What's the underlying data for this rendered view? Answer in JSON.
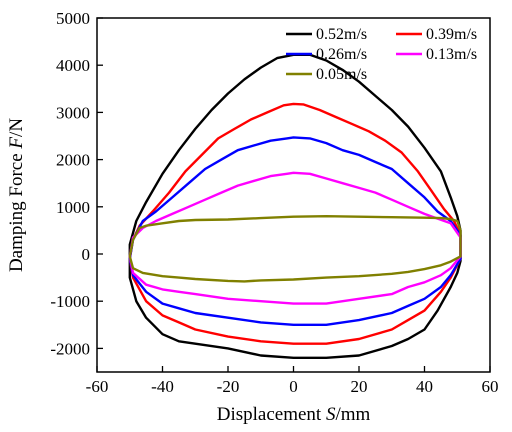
{
  "chart_data": {
    "type": "line",
    "xlabel_parts": [
      "Displacement ",
      "S",
      "/mm"
    ],
    "ylabel_parts": [
      "Damping Force ",
      "F",
      "/N"
    ],
    "xlim": [
      -60,
      60
    ],
    "ylim": [
      -2500,
      5000
    ],
    "xticks": [
      -60,
      -40,
      -20,
      0,
      20,
      40,
      60
    ],
    "yticks": [
      -2000,
      -1000,
      0,
      1000,
      2000,
      3000,
      4000,
      5000
    ],
    "grid": false,
    "legend_placement": "top-right",
    "series": [
      {
        "name": "0.52m/s",
        "color": "#000000",
        "upper": [
          [
            -50,
            -150
          ],
          [
            -50,
            200
          ],
          [
            -48,
            700
          ],
          [
            -45,
            1100
          ],
          [
            -40,
            1700
          ],
          [
            -35,
            2200
          ],
          [
            -30,
            2650
          ],
          [
            -25,
            3050
          ],
          [
            -20,
            3400
          ],
          [
            -15,
            3700
          ],
          [
            -10,
            3950
          ],
          [
            -5,
            4150
          ],
          [
            0,
            4220
          ],
          [
            5,
            4220
          ],
          [
            10,
            4100
          ],
          [
            15,
            3900
          ],
          [
            20,
            3650
          ],
          [
            25,
            3350
          ],
          [
            30,
            3050
          ],
          [
            35,
            2700
          ],
          [
            40,
            2250
          ],
          [
            45,
            1750
          ],
          [
            48,
            1200
          ],
          [
            50,
            800
          ],
          [
            51,
            500
          ],
          [
            51,
            0
          ],
          [
            51,
            -150
          ]
        ],
        "lower": [
          [
            -50,
            -150
          ],
          [
            -50,
            -500
          ],
          [
            -48,
            -1000
          ],
          [
            -45,
            -1350
          ],
          [
            -40,
            -1700
          ],
          [
            -35,
            -1850
          ],
          [
            -30,
            -1900
          ],
          [
            -20,
            -2000
          ],
          [
            -10,
            -2150
          ],
          [
            0,
            -2200
          ],
          [
            10,
            -2200
          ],
          [
            20,
            -2150
          ],
          [
            30,
            -1950
          ],
          [
            35,
            -1800
          ],
          [
            40,
            -1600
          ],
          [
            44,
            -1200
          ],
          [
            48,
            -700
          ],
          [
            50,
            -400
          ],
          [
            51,
            -150
          ]
        ]
      },
      {
        "name": "0.39m/s",
        "color": "#ff0000",
        "upper": [
          [
            -50,
            -100
          ],
          [
            -49,
            300
          ],
          [
            -47,
            600
          ],
          [
            -43,
            900
          ],
          [
            -38,
            1300
          ],
          [
            -33,
            1750
          ],
          [
            -28,
            2100
          ],
          [
            -23,
            2450
          ],
          [
            -18,
            2650
          ],
          [
            -13,
            2850
          ],
          [
            -8,
            3000
          ],
          [
            -3,
            3150
          ],
          [
            0,
            3180
          ],
          [
            3,
            3170
          ],
          [
            8,
            3050
          ],
          [
            13,
            2900
          ],
          [
            18,
            2750
          ],
          [
            23,
            2600
          ],
          [
            28,
            2400
          ],
          [
            33,
            2150
          ],
          [
            38,
            1750
          ],
          [
            42,
            1350
          ],
          [
            46,
            950
          ],
          [
            49,
            700
          ],
          [
            51,
            400
          ],
          [
            51,
            -100
          ]
        ],
        "lower": [
          [
            -50,
            -100
          ],
          [
            -49,
            -500
          ],
          [
            -45,
            -1000
          ],
          [
            -40,
            -1300
          ],
          [
            -35,
            -1450
          ],
          [
            -30,
            -1600
          ],
          [
            -20,
            -1750
          ],
          [
            -10,
            -1850
          ],
          [
            0,
            -1900
          ],
          [
            10,
            -1900
          ],
          [
            20,
            -1800
          ],
          [
            30,
            -1600
          ],
          [
            35,
            -1400
          ],
          [
            40,
            -1200
          ],
          [
            45,
            -800
          ],
          [
            48,
            -500
          ],
          [
            51,
            -100
          ]
        ]
      },
      {
        "name": "0.26m/s",
        "color": "#0000ff",
        "upper": [
          [
            -50,
            -100
          ],
          [
            -49,
            300
          ],
          [
            -46,
            700
          ],
          [
            -42,
            900
          ],
          [
            -37,
            1200
          ],
          [
            -32,
            1500
          ],
          [
            -27,
            1800
          ],
          [
            -22,
            2000
          ],
          [
            -17,
            2200
          ],
          [
            -12,
            2300
          ],
          [
            -7,
            2400
          ],
          [
            -2,
            2450
          ],
          [
            0,
            2470
          ],
          [
            5,
            2450
          ],
          [
            10,
            2350
          ],
          [
            15,
            2200
          ],
          [
            20,
            2100
          ],
          [
            25,
            1950
          ],
          [
            30,
            1800
          ],
          [
            35,
            1500
          ],
          [
            40,
            1200
          ],
          [
            44,
            900
          ],
          [
            48,
            700
          ],
          [
            51,
            400
          ],
          [
            51,
            -100
          ]
        ],
        "lower": [
          [
            -50,
            -100
          ],
          [
            -49,
            -450
          ],
          [
            -45,
            -800
          ],
          [
            -40,
            -1050
          ],
          [
            -35,
            -1150
          ],
          [
            -30,
            -1250
          ],
          [
            -20,
            -1350
          ],
          [
            -10,
            -1450
          ],
          [
            0,
            -1500
          ],
          [
            10,
            -1500
          ],
          [
            20,
            -1400
          ],
          [
            30,
            -1250
          ],
          [
            35,
            -1100
          ],
          [
            40,
            -950
          ],
          [
            45,
            -700
          ],
          [
            48,
            -450
          ],
          [
            51,
            -100
          ]
        ]
      },
      {
        "name": "0.13m/s",
        "color": "#ff00ff",
        "upper": [
          [
            -50,
            -50
          ],
          [
            -49,
            350
          ],
          [
            -46,
            550
          ],
          [
            -42,
            700
          ],
          [
            -37,
            850
          ],
          [
            -32,
            1000
          ],
          [
            -27,
            1150
          ],
          [
            -22,
            1300
          ],
          [
            -17,
            1450
          ],
          [
            -12,
            1550
          ],
          [
            -7,
            1650
          ],
          [
            -2,
            1700
          ],
          [
            0,
            1720
          ],
          [
            5,
            1700
          ],
          [
            10,
            1600
          ],
          [
            15,
            1500
          ],
          [
            20,
            1400
          ],
          [
            25,
            1300
          ],
          [
            30,
            1150
          ],
          [
            35,
            1000
          ],
          [
            40,
            850
          ],
          [
            44,
            750
          ],
          [
            48,
            650
          ],
          [
            51,
            350
          ],
          [
            51,
            -50
          ]
        ],
        "lower": [
          [
            -50,
            -50
          ],
          [
            -49,
            -400
          ],
          [
            -45,
            -650
          ],
          [
            -40,
            -750
          ],
          [
            -35,
            -800
          ],
          [
            -30,
            -850
          ],
          [
            -20,
            -950
          ],
          [
            -10,
            -1000
          ],
          [
            0,
            -1050
          ],
          [
            10,
            -1050
          ],
          [
            20,
            -950
          ],
          [
            30,
            -850
          ],
          [
            35,
            -700
          ],
          [
            40,
            -600
          ],
          [
            45,
            -450
          ],
          [
            48,
            -300
          ],
          [
            51,
            -50
          ]
        ]
      },
      {
        "name": "0.05m/s",
        "color": "#808000",
        "upper": [
          [
            -50,
            -50
          ],
          [
            -49,
            300
          ],
          [
            -47,
            550
          ],
          [
            -45,
            600
          ],
          [
            -40,
            650
          ],
          [
            -35,
            700
          ],
          [
            -30,
            720
          ],
          [
            -20,
            730
          ],
          [
            -10,
            760
          ],
          [
            0,
            790
          ],
          [
            10,
            800
          ],
          [
            20,
            790
          ],
          [
            30,
            780
          ],
          [
            40,
            770
          ],
          [
            45,
            760
          ],
          [
            48,
            740
          ],
          [
            50,
            700
          ],
          [
            51,
            500
          ],
          [
            51,
            -50
          ]
        ],
        "lower": [
          [
            -50,
            -50
          ],
          [
            -49,
            -300
          ],
          [
            -46,
            -400
          ],
          [
            -40,
            -470
          ],
          [
            -35,
            -500
          ],
          [
            -30,
            -530
          ],
          [
            -20,
            -570
          ],
          [
            -15,
            -580
          ],
          [
            -10,
            -560
          ],
          [
            0,
            -540
          ],
          [
            10,
            -500
          ],
          [
            20,
            -470
          ],
          [
            30,
            -420
          ],
          [
            35,
            -380
          ],
          [
            40,
            -320
          ],
          [
            45,
            -240
          ],
          [
            48,
            -160
          ],
          [
            51,
            -50
          ]
        ]
      }
    ]
  }
}
